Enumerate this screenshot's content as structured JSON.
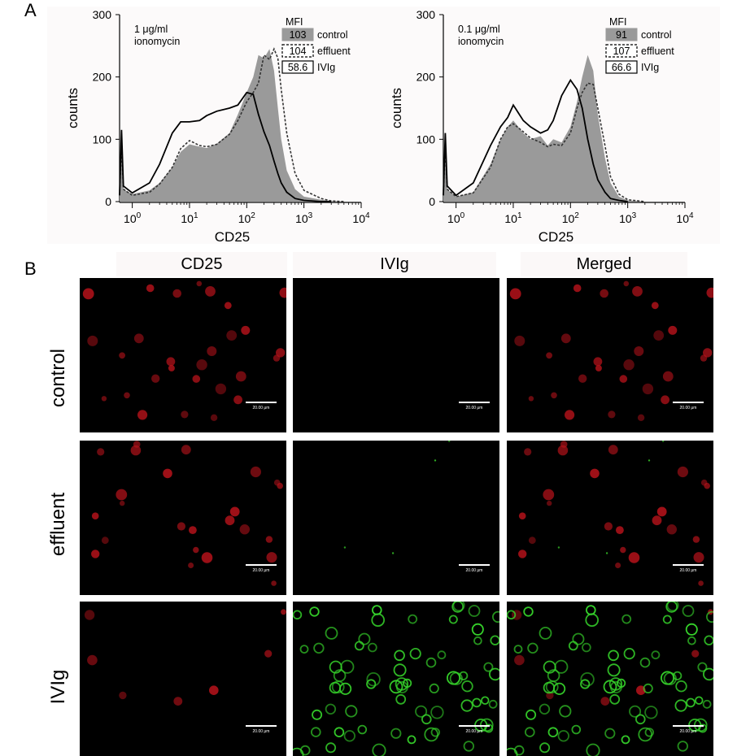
{
  "panel_a_label": "A",
  "panel_b_label": "B",
  "chart_data": [
    {
      "type": "line",
      "annotation": "1 μg/ml\nionomycin",
      "xlabel": "CD25",
      "ylabel": "counts",
      "x_scale": "log",
      "xlim": [
        0.6,
        10000
      ],
      "ylim": [
        0,
        300
      ],
      "y_ticks": [
        0,
        100,
        200,
        300
      ],
      "x_ticks": [
        "10^0",
        "10^1",
        "10^2",
        "10^3",
        "10^4"
      ],
      "legend_title": "MFI",
      "legend": [
        {
          "mfi": "103",
          "name": "control",
          "style": "filled",
          "color": "#9a9a9a"
        },
        {
          "mfi": "104",
          "name": "effluent",
          "style": "dashed",
          "color": "#333333"
        },
        {
          "mfi": "58.6",
          "name": "IVIg",
          "style": "solid",
          "color": "#000000"
        }
      ],
      "series": [
        {
          "name": "control",
          "x": [
            0.6,
            0.65,
            0.7,
            1,
            2,
            3,
            5,
            7,
            10,
            15,
            20,
            30,
            50,
            70,
            100,
            130,
            160,
            200,
            250,
            300,
            350,
            400,
            500,
            700,
            1000,
            2000,
            3000,
            5000
          ],
          "y": [
            10,
            90,
            20,
            12,
            18,
            30,
            55,
            80,
            92,
            88,
            86,
            93,
            110,
            140,
            175,
            200,
            235,
            230,
            245,
            210,
            150,
            100,
            50,
            20,
            8,
            3,
            1,
            0
          ]
        },
        {
          "name": "effluent",
          "x": [
            0.6,
            0.65,
            0.7,
            1,
            2,
            3,
            5,
            7,
            10,
            15,
            20,
            30,
            50,
            70,
            100,
            130,
            160,
            200,
            250,
            300,
            350,
            400,
            500,
            700,
            1000,
            2000,
            3000,
            5000
          ],
          "y": [
            10,
            90,
            20,
            10,
            15,
            28,
            55,
            85,
            98,
            90,
            88,
            92,
            108,
            130,
            160,
            175,
            190,
            235,
            228,
            245,
            230,
            180,
            110,
            45,
            18,
            5,
            1,
            0
          ]
        },
        {
          "name": "IVIg",
          "x": [
            0.6,
            0.65,
            0.7,
            1,
            2,
            3,
            5,
            7,
            10,
            15,
            20,
            30,
            50,
            70,
            100,
            130,
            160,
            200,
            250,
            300,
            350,
            400,
            500,
            700,
            1000,
            2000,
            3000
          ],
          "y": [
            10,
            115,
            25,
            14,
            30,
            60,
            110,
            128,
            128,
            130,
            138,
            145,
            150,
            155,
            175,
            172,
            140,
            112,
            90,
            65,
            45,
            30,
            15,
            5,
            2,
            0,
            0
          ]
        }
      ]
    },
    {
      "type": "line",
      "annotation": "0.1 μg/ml\nionomycin",
      "xlabel": "CD25",
      "ylabel": "counts",
      "x_scale": "log",
      "xlim": [
        0.6,
        10000
      ],
      "ylim": [
        0,
        300
      ],
      "y_ticks": [
        0,
        100,
        200,
        300
      ],
      "x_ticks": [
        "10^0",
        "10^1",
        "10^2",
        "10^3",
        "10^4"
      ],
      "legend_title": "MFI",
      "legend": [
        {
          "mfi": "91",
          "name": "control",
          "style": "filled",
          "color": "#9a9a9a"
        },
        {
          "mfi": "107",
          "name": "effluent",
          "style": "dashed",
          "color": "#333333"
        },
        {
          "mfi": "66.6",
          "name": "IVIg",
          "style": "solid",
          "color": "#000000"
        }
      ],
      "series": [
        {
          "name": "control",
          "x": [
            0.6,
            0.65,
            0.7,
            1,
            2,
            4,
            6,
            8,
            10,
            15,
            20,
            30,
            40,
            50,
            70,
            100,
            130,
            160,
            200,
            250,
            300,
            400,
            500,
            700,
            1000,
            2000
          ],
          "y": [
            10,
            90,
            20,
            8,
            15,
            60,
            100,
            120,
            130,
            110,
            100,
            105,
            90,
            100,
            95,
            120,
            160,
            200,
            235,
            210,
            140,
            70,
            30,
            8,
            2,
            0
          ]
        },
        {
          "name": "effluent",
          "x": [
            0.6,
            0.65,
            0.7,
            1,
            2,
            4,
            6,
            8,
            10,
            15,
            20,
            30,
            40,
            50,
            70,
            100,
            130,
            160,
            200,
            250,
            300,
            400,
            500,
            700,
            1000,
            2000
          ],
          "y": [
            10,
            90,
            20,
            8,
            14,
            55,
            100,
            120,
            125,
            112,
            102,
            95,
            88,
            92,
            90,
            110,
            150,
            175,
            190,
            188,
            150,
            90,
            40,
            12,
            3,
            0
          ]
        },
        {
          "name": "IVIg",
          "x": [
            0.6,
            0.65,
            0.7,
            1,
            2,
            4,
            6,
            8,
            10,
            15,
            20,
            30,
            40,
            50,
            70,
            100,
            130,
            160,
            200,
            250,
            300,
            400,
            500,
            700,
            1000
          ],
          "y": [
            10,
            110,
            25,
            10,
            30,
            90,
            120,
            135,
            155,
            130,
            120,
            110,
            115,
            130,
            170,
            195,
            180,
            150,
            100,
            60,
            35,
            15,
            5,
            2,
            0
          ]
        }
      ]
    }
  ],
  "panel_b": {
    "columns": [
      "CD25",
      "IVIg",
      "Merged"
    ],
    "rows": [
      "control",
      "effluent",
      "IVIg"
    ],
    "scale_bar": "20.00 μm"
  }
}
